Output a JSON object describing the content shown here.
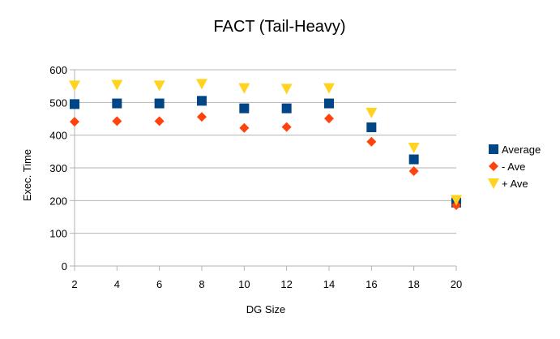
{
  "chart_data": {
    "type": "scatter",
    "title": "FACT (Tail-Heavy)",
    "xlabel": "DG Size",
    "ylabel": "Exec. Time",
    "x": [
      2,
      4,
      6,
      8,
      10,
      12,
      14,
      16,
      18,
      20
    ],
    "xlim": [
      2,
      20
    ],
    "ylim": [
      0,
      600
    ],
    "xticks": [
      2,
      4,
      6,
      8,
      10,
      12,
      14,
      16,
      18,
      20
    ],
    "yticks": [
      0,
      100,
      200,
      300,
      400,
      500,
      600
    ],
    "grid": "horizontal",
    "legend_position": "right",
    "series": [
      {
        "name": "Average",
        "marker": "square",
        "color": "#004586",
        "values": [
          495,
          497,
          497,
          505,
          482,
          482,
          497,
          424,
          326,
          194
        ]
      },
      {
        "name": "- Ave",
        "marker": "diamond",
        "color": "#ff420e",
        "values": [
          441,
          443,
          443,
          456,
          422,
          425,
          451,
          380,
          290,
          186
        ]
      },
      {
        "name": "+ Ave",
        "marker": "triangle-down",
        "color": "#ffd320",
        "values": [
          552,
          554,
          552,
          557,
          544,
          542,
          544,
          469,
          362,
          202
        ]
      }
    ]
  }
}
